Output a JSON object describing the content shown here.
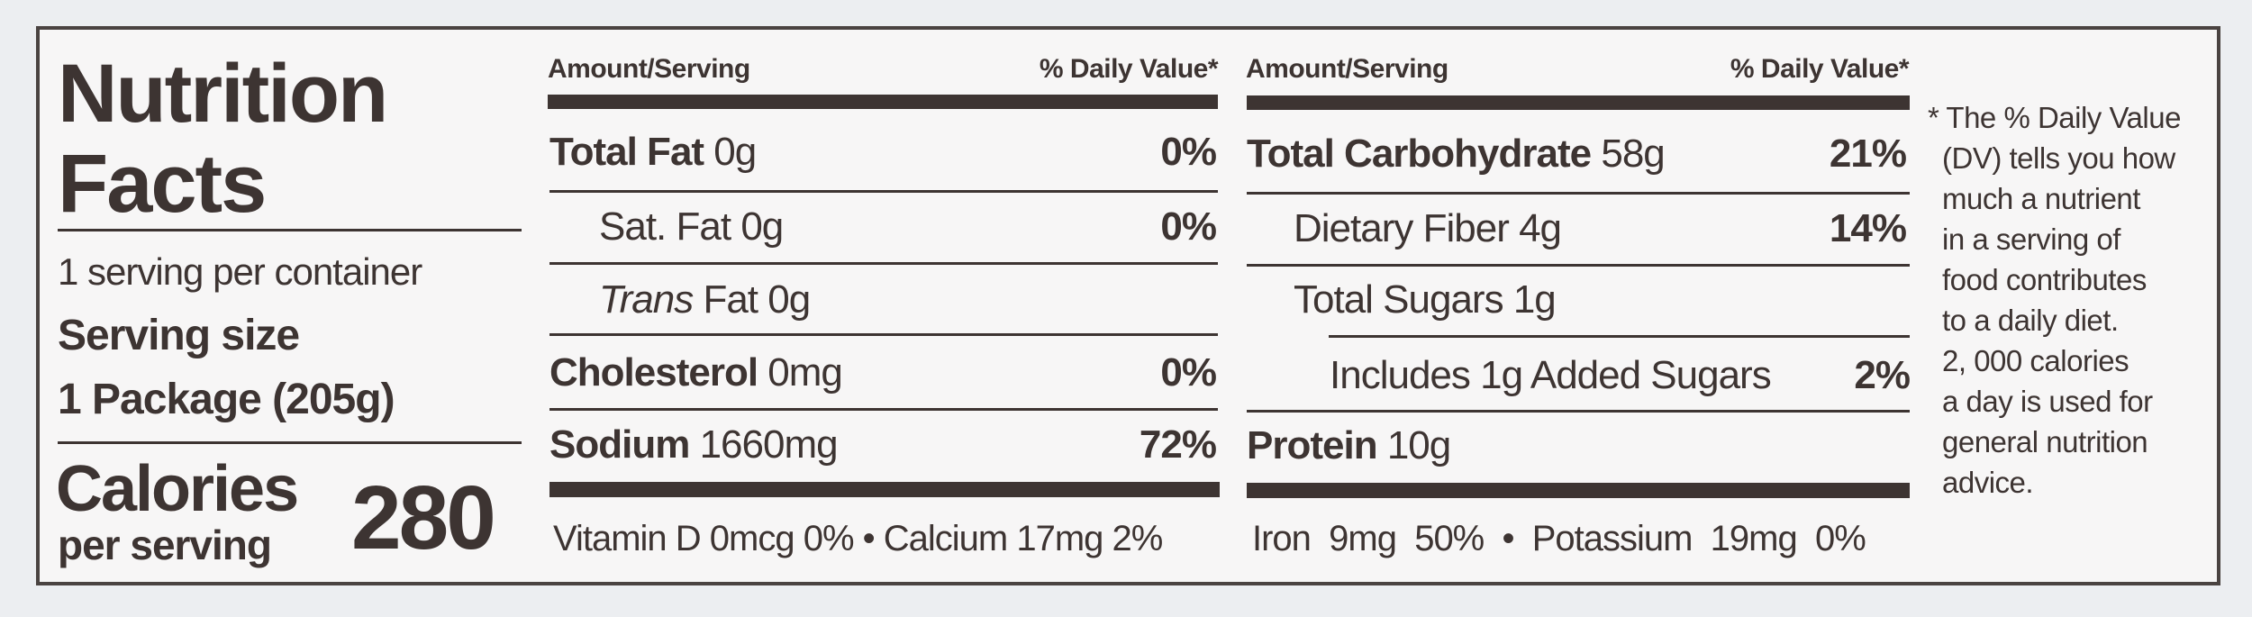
{
  "title_line1": "Nutrition",
  "title_line2": "Facts",
  "servings_per_container": "1 serving per container",
  "serving_size_label": "Serving size",
  "serving_size_value": "1 Package (205g)",
  "calories_label": "Calories",
  "calories_sub": "per serving",
  "calories_value": "280",
  "header": {
    "amount": "Amount/Serving",
    "dv": "% Daily Value*"
  },
  "left_rows": [
    {
      "name": "Total Fat",
      "amount": "0g",
      "dv": "0%"
    },
    {
      "name": "Sat. Fat",
      "amount": "0g",
      "dv": "0%"
    },
    {
      "name": "Trans",
      "name_rest": "Fat",
      "amount": "0g",
      "dv": ""
    },
    {
      "name": "Cholesterol",
      "amount": "0mg",
      "dv": "0%"
    },
    {
      "name": "Sodium",
      "amount": "1660mg",
      "dv": "72%"
    }
  ],
  "right_rows": [
    {
      "name": "Total Carbohydrate",
      "amount": "58g",
      "dv": "21%"
    },
    {
      "name": "Dietary Fiber",
      "amount": "4g",
      "dv": "14%"
    },
    {
      "name": "Total Sugars",
      "amount": "1g",
      "dv": ""
    },
    {
      "name": "Includes 1g Added Sugars",
      "amount": "",
      "dv": "2%"
    },
    {
      "name": "Protein",
      "amount": "10g",
      "dv": ""
    }
  ],
  "vitamins_left": "Vitamin D 0mcg 0% • Calcium 17mg 2%",
  "vitamins_right": "Iron  9mg  50%  •  Potassium  19mg  0%",
  "footnote": [
    "* The % Daily Value",
    "(DV) tells you how",
    "much a nutrient",
    "in a serving of",
    "food contributes",
    "to a daily diet.",
    "2, 000 calories",
    "a day is used for",
    "general nutrition",
    "advice."
  ]
}
